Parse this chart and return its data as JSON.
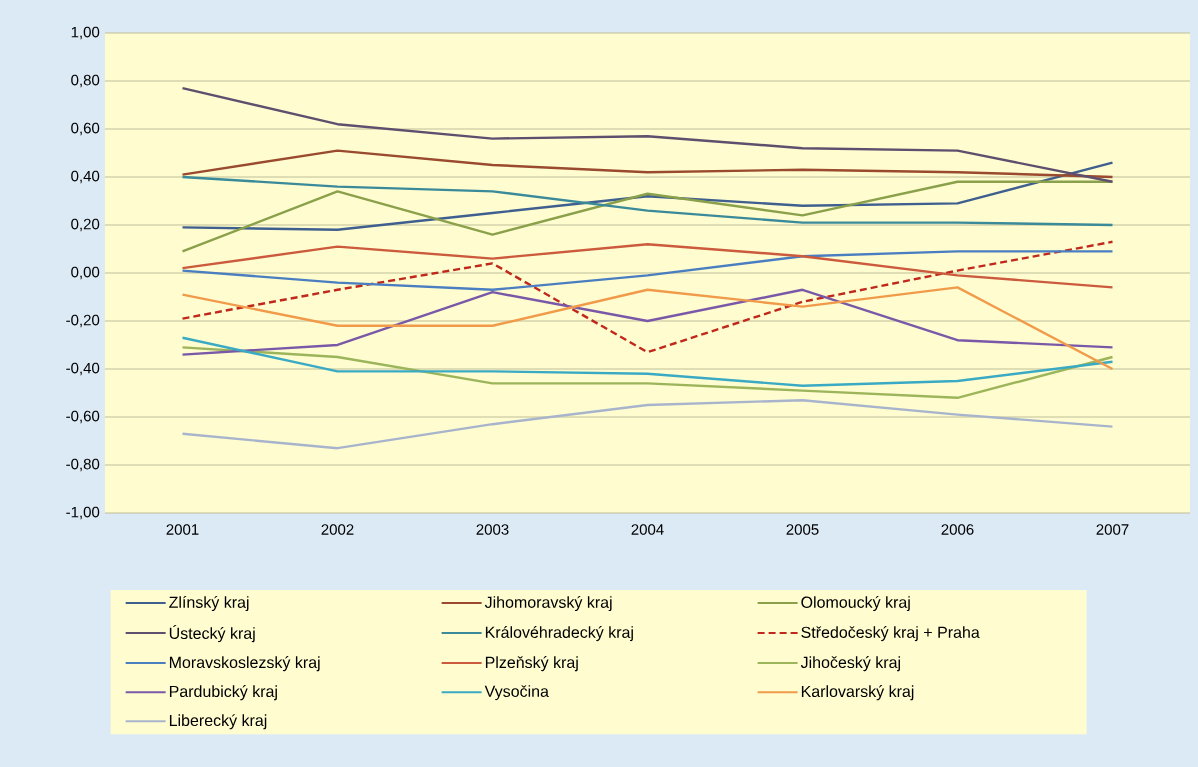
{
  "chart_data": {
    "type": "line",
    "categories": [
      "2001",
      "2002",
      "2003",
      "2004",
      "2005",
      "2006",
      "2007"
    ],
    "ylim": [
      -1,
      1
    ],
    "yticks": [
      {
        "value": -1,
        "label": "-1,00"
      },
      {
        "value": -0.8,
        "label": "-0,80"
      },
      {
        "value": -0.6,
        "label": "-0,60"
      },
      {
        "value": -0.4,
        "label": "-0,40"
      },
      {
        "value": -0.2,
        "label": "-0,20"
      },
      {
        "value": 0,
        "label": "0,00"
      },
      {
        "value": 0.2,
        "label": "0,20"
      },
      {
        "value": 0.4,
        "label": "0,40"
      },
      {
        "value": 0.6,
        "label": "0,60"
      },
      {
        "value": 0.8,
        "label": "0,80"
      },
      {
        "value": 1,
        "label": "1,00"
      }
    ],
    "grid": "y",
    "legend": "bottom",
    "marker": "none",
    "series": [
      {
        "name": "Zlínský kraj",
        "color": "#3f5f8f",
        "values": [
          0.19,
          0.18,
          0.25,
          0.32,
          0.28,
          0.29,
          0.46
        ]
      },
      {
        "name": "Jihomoravský kraj",
        "color": "#9a4a2e",
        "values": [
          0.41,
          0.51,
          0.45,
          0.42,
          0.43,
          0.42,
          0.4
        ]
      },
      {
        "name": "Olomoucký kraj",
        "color": "#8aa04a",
        "values": [
          0.09,
          0.34,
          0.16,
          0.33,
          0.24,
          0.38,
          0.38
        ]
      },
      {
        "name": "Ústecký kraj",
        "color": "#5e4f6e",
        "values": [
          0.77,
          0.62,
          0.56,
          0.57,
          0.52,
          0.51,
          0.38
        ]
      },
      {
        "name": "Královéhradecký kraj",
        "color": "#3a8a9a",
        "values": [
          0.4,
          0.36,
          0.34,
          0.26,
          0.21,
          0.21,
          0.2
        ]
      },
      {
        "name": "Středočeský kraj + Praha",
        "color": "#c0281c",
        "line_style": "dashed",
        "values": [
          -0.19,
          -0.07,
          0.04,
          -0.33,
          -0.12,
          0.01,
          0.13
        ]
      },
      {
        "name": "Moravskoslezský kraj",
        "color": "#4a7ec0",
        "values": [
          0.01,
          -0.04,
          -0.07,
          -0.01,
          0.07,
          0.09,
          0.09
        ]
      },
      {
        "name": "Plzeňský kraj",
        "color": "#cc5a3c",
        "values": [
          0.02,
          0.11,
          0.06,
          0.12,
          0.07,
          -0.01,
          -0.06
        ]
      },
      {
        "name": "Jihočeský kraj",
        "color": "#9cb45a",
        "values": [
          -0.31,
          -0.35,
          -0.46,
          -0.46,
          -0.49,
          -0.52,
          -0.35
        ]
      },
      {
        "name": "Pardubický kraj",
        "color": "#7a58a8",
        "values": [
          -0.34,
          -0.3,
          -0.08,
          -0.2,
          -0.07,
          -0.28,
          -0.31
        ]
      },
      {
        "name": "Vysočina",
        "color": "#3aaac4",
        "values": [
          -0.27,
          -0.41,
          -0.41,
          -0.42,
          -0.47,
          -0.45,
          -0.37
        ]
      },
      {
        "name": "Karlovarský kraj",
        "color": "#f09a4a",
        "values": [
          -0.09,
          -0.22,
          -0.22,
          -0.07,
          -0.14,
          -0.06,
          -0.4
        ]
      },
      {
        "name": "Liberecký kraj",
        "color": "#a8b4cc",
        "values": [
          -0.67,
          -0.73,
          -0.63,
          -0.55,
          -0.53,
          -0.59,
          -0.64
        ]
      }
    ]
  }
}
